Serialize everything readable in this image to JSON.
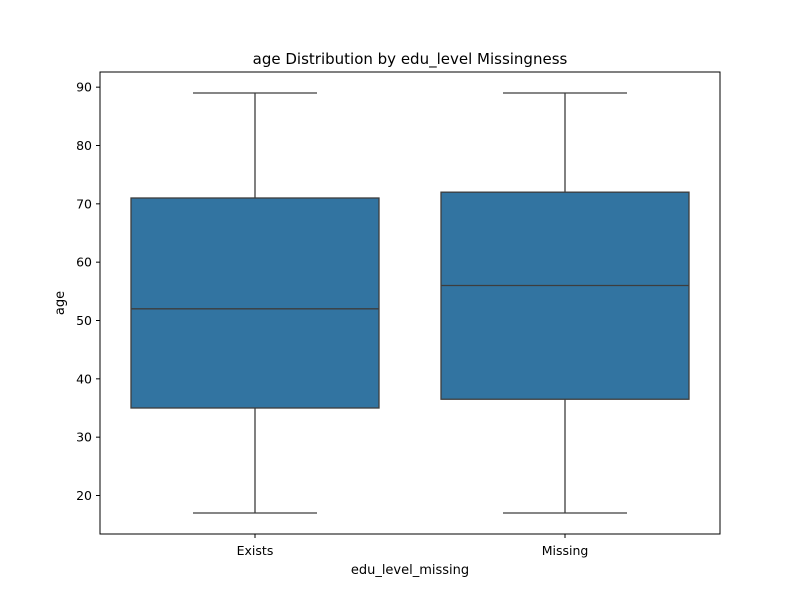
{
  "chart_data": {
    "type": "box",
    "title": "age Distribution by edu_level Missingness",
    "xlabel": "edu_level_missing",
    "ylabel": "age",
    "categories": [
      "Exists",
      "Missing"
    ],
    "boxes": [
      {
        "category": "Exists",
        "min": 17,
        "q1": 35,
        "median": 52,
        "q3": 71,
        "max": 89
      },
      {
        "category": "Missing",
        "min": 17,
        "q1": 36.5,
        "median": 56,
        "q3": 72,
        "max": 89
      }
    ],
    "ylim": [
      13.4,
      92.6
    ],
    "yticks": [
      20,
      30,
      40,
      50,
      60,
      70,
      80,
      90
    ],
    "grid": false,
    "box_color": "#3274a1",
    "line_color": "#3d3d3d"
  }
}
